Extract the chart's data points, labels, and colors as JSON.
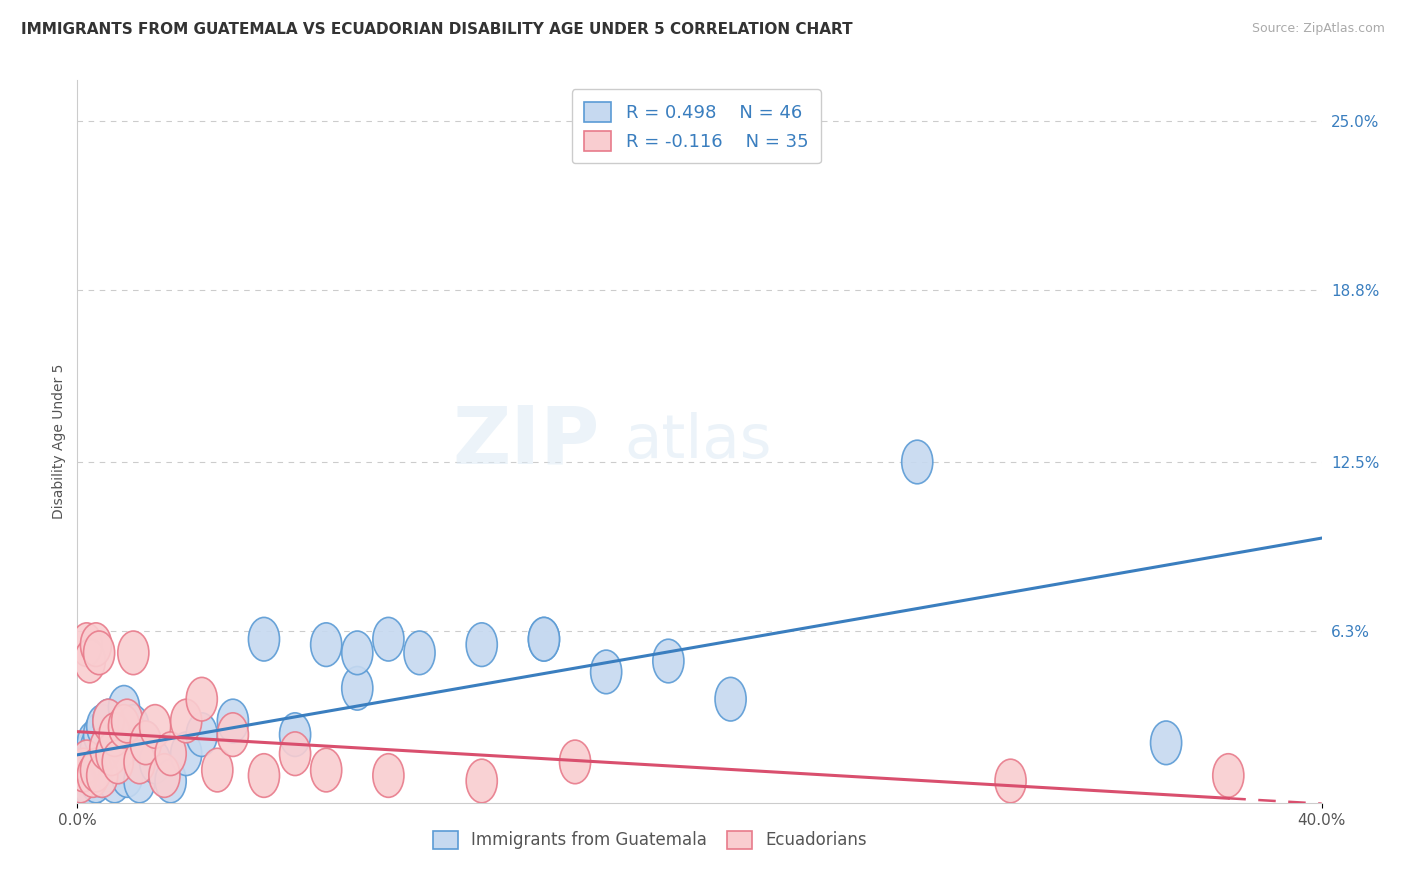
{
  "title": "IMMIGRANTS FROM GUATEMALA VS ECUADORIAN DISABILITY AGE UNDER 5 CORRELATION CHART",
  "source_text": "Source: ZipAtlas.com",
  "ylabel": "Disability Age Under 5",
  "xmin": 0.0,
  "xmax": 0.4,
  "ymin": 0.0,
  "ymax": 0.265,
  "ytick_vals": [
    0.063,
    0.125,
    0.188,
    0.25
  ],
  "ytick_labels": [
    "6.3%",
    "12.5%",
    "18.8%",
    "25.0%"
  ],
  "legend_r1": "R = 0.498",
  "legend_n1": "N = 46",
  "legend_r2": "R = -0.116",
  "legend_n2": "N = 35",
  "blue_face": "#c6d9f0",
  "blue_edge": "#5b9bd5",
  "pink_face": "#f9cdd0",
  "pink_edge": "#e87b8b",
  "blue_line": "#3a7ebf",
  "pink_line": "#d94f6e",
  "grid_color": "#cccccc",
  "bg": "#ffffff",
  "blue_x": [
    0.001,
    0.002,
    0.003,
    0.003,
    0.004,
    0.004,
    0.005,
    0.005,
    0.006,
    0.006,
    0.007,
    0.007,
    0.008,
    0.008,
    0.009,
    0.01,
    0.01,
    0.011,
    0.012,
    0.013,
    0.014,
    0.015,
    0.016,
    0.018,
    0.02,
    0.022,
    0.025,
    0.03,
    0.035,
    0.04,
    0.05,
    0.06,
    0.07,
    0.08,
    0.09,
    0.1,
    0.11,
    0.13,
    0.15,
    0.17,
    0.19,
    0.21,
    0.27,
    0.35,
    0.15,
    0.09
  ],
  "blue_y": [
    0.005,
    0.01,
    0.008,
    0.015,
    0.006,
    0.018,
    0.01,
    0.022,
    0.008,
    0.02,
    0.012,
    0.025,
    0.01,
    0.028,
    0.015,
    0.012,
    0.03,
    0.018,
    0.008,
    0.022,
    0.015,
    0.035,
    0.01,
    0.028,
    0.008,
    0.022,
    0.015,
    0.008,
    0.018,
    0.025,
    0.03,
    0.06,
    0.025,
    0.058,
    0.042,
    0.06,
    0.055,
    0.058,
    0.06,
    0.048,
    0.052,
    0.038,
    0.125,
    0.022,
    0.06,
    0.055
  ],
  "pink_x": [
    0.001,
    0.002,
    0.003,
    0.003,
    0.004,
    0.005,
    0.006,
    0.006,
    0.007,
    0.008,
    0.009,
    0.01,
    0.011,
    0.012,
    0.013,
    0.015,
    0.016,
    0.018,
    0.02,
    0.022,
    0.025,
    0.028,
    0.03,
    0.035,
    0.04,
    0.045,
    0.05,
    0.06,
    0.07,
    0.08,
    0.1,
    0.13,
    0.16,
    0.3,
    0.37
  ],
  "pink_y": [
    0.008,
    0.012,
    0.015,
    0.058,
    0.052,
    0.01,
    0.058,
    0.012,
    0.055,
    0.01,
    0.02,
    0.03,
    0.018,
    0.025,
    0.015,
    0.028,
    0.03,
    0.055,
    0.015,
    0.022,
    0.028,
    0.01,
    0.018,
    0.03,
    0.038,
    0.012,
    0.025,
    0.01,
    0.018,
    0.012,
    0.01,
    0.008,
    0.015,
    0.008,
    0.01
  ]
}
